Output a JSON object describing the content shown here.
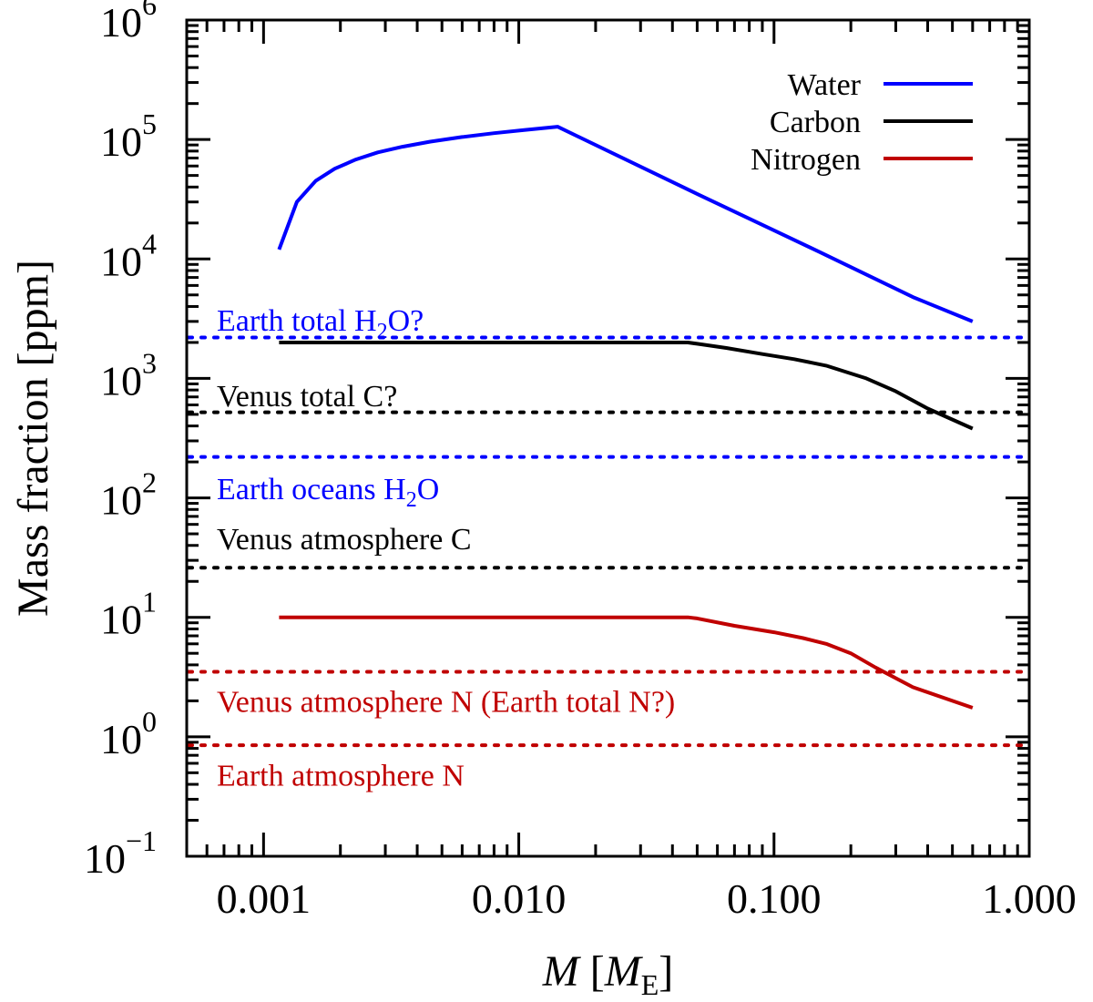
{
  "chart_data": {
    "type": "line",
    "x_scale": "log",
    "y_scale": "log",
    "xlim": [
      0.0005,
      1.0
    ],
    "ylim": [
      0.1,
      1000000
    ],
    "x_ticks": [
      {
        "value": 0.001,
        "label": "0.001"
      },
      {
        "value": 0.01,
        "label": "0.010"
      },
      {
        "value": 0.1,
        "label": "0.100"
      },
      {
        "value": 1.0,
        "label": "1.000"
      }
    ],
    "y_ticks": [
      {
        "value": 0.1,
        "base": "10",
        "exp": "−1"
      },
      {
        "value": 1,
        "base": "10",
        "exp": "0"
      },
      {
        "value": 10,
        "base": "10",
        "exp": "1"
      },
      {
        "value": 100,
        "base": "10",
        "exp": "2"
      },
      {
        "value": 1000,
        "base": "10",
        "exp": "3"
      },
      {
        "value": 10000,
        "base": "10",
        "exp": "4"
      },
      {
        "value": 100000,
        "base": "10",
        "exp": "5"
      },
      {
        "value": 1000000,
        "base": "10",
        "exp": "6"
      }
    ],
    "xlabel": {
      "var": "M",
      "open": " [",
      "unit": "M",
      "sub": "E",
      "close": "]"
    },
    "ylabel": "Mass fraction [ppm]",
    "legend": "top-right",
    "grid": false,
    "series": [
      {
        "name": "Water",
        "color": "#0000ff",
        "points": [
          [
            0.00115,
            12000
          ],
          [
            0.00135,
            30000
          ],
          [
            0.0016,
            45000
          ],
          [
            0.0019,
            57000
          ],
          [
            0.0023,
            68000
          ],
          [
            0.0028,
            78000
          ],
          [
            0.0035,
            87000
          ],
          [
            0.0045,
            96000
          ],
          [
            0.006,
            105000
          ],
          [
            0.008,
            113000
          ],
          [
            0.0105,
            120000
          ],
          [
            0.0142,
            128000
          ],
          [
            0.05,
            35000
          ],
          [
            0.15,
            11500
          ],
          [
            0.35,
            4800
          ],
          [
            0.6,
            3000
          ]
        ]
      },
      {
        "name": "Carbon",
        "color": "#000000",
        "points": [
          [
            0.00115,
            2000
          ],
          [
            0.046,
            2000
          ],
          [
            0.05,
            1950
          ],
          [
            0.065,
            1800
          ],
          [
            0.09,
            1600
          ],
          [
            0.12,
            1450
          ],
          [
            0.16,
            1280
          ],
          [
            0.2,
            1100
          ],
          [
            0.23,
            1000
          ],
          [
            0.3,
            780
          ],
          [
            0.4,
            560
          ],
          [
            0.6,
            380
          ]
        ]
      },
      {
        "name": "Nitrogen",
        "color": "#c00000",
        "points": [
          [
            0.00115,
            10
          ],
          [
            0.046,
            10
          ],
          [
            0.05,
            9.8
          ],
          [
            0.07,
            8.5
          ],
          [
            0.1,
            7.5
          ],
          [
            0.13,
            6.7
          ],
          [
            0.16,
            6.0
          ],
          [
            0.2,
            5.0
          ],
          [
            0.25,
            3.8
          ],
          [
            0.35,
            2.6
          ],
          [
            0.6,
            1.75
          ]
        ]
      }
    ],
    "reference_lines": [
      {
        "y": 2200,
        "color": "#0000ff",
        "label": "Earth total H",
        "sub": "2",
        "tail": "O?",
        "label_y": 3100
      },
      {
        "y": 520,
        "color": "#000000",
        "label": "Venus total C?",
        "sub": "",
        "tail": "",
        "label_y": 720
      },
      {
        "y": 220,
        "color": "#0000ff",
        "label": "Earth oceans H",
        "sub": "2",
        "tail": "O",
        "label_y": 120
      },
      {
        "y": 26,
        "color": "#000000",
        "label": "Venus atmosphere C",
        "sub": "",
        "tail": "",
        "label_y": 46
      },
      {
        "y": 3.5,
        "color": "#c00000",
        "label": "Venus atmosphere N (Earth total N?)",
        "sub": "",
        "tail": "",
        "label_y": 2.0
      },
      {
        "y": 0.85,
        "color": "#c00000",
        "label": "Earth atmosphere N",
        "sub": "",
        "tail": "",
        "label_y": 0.48
      }
    ]
  }
}
